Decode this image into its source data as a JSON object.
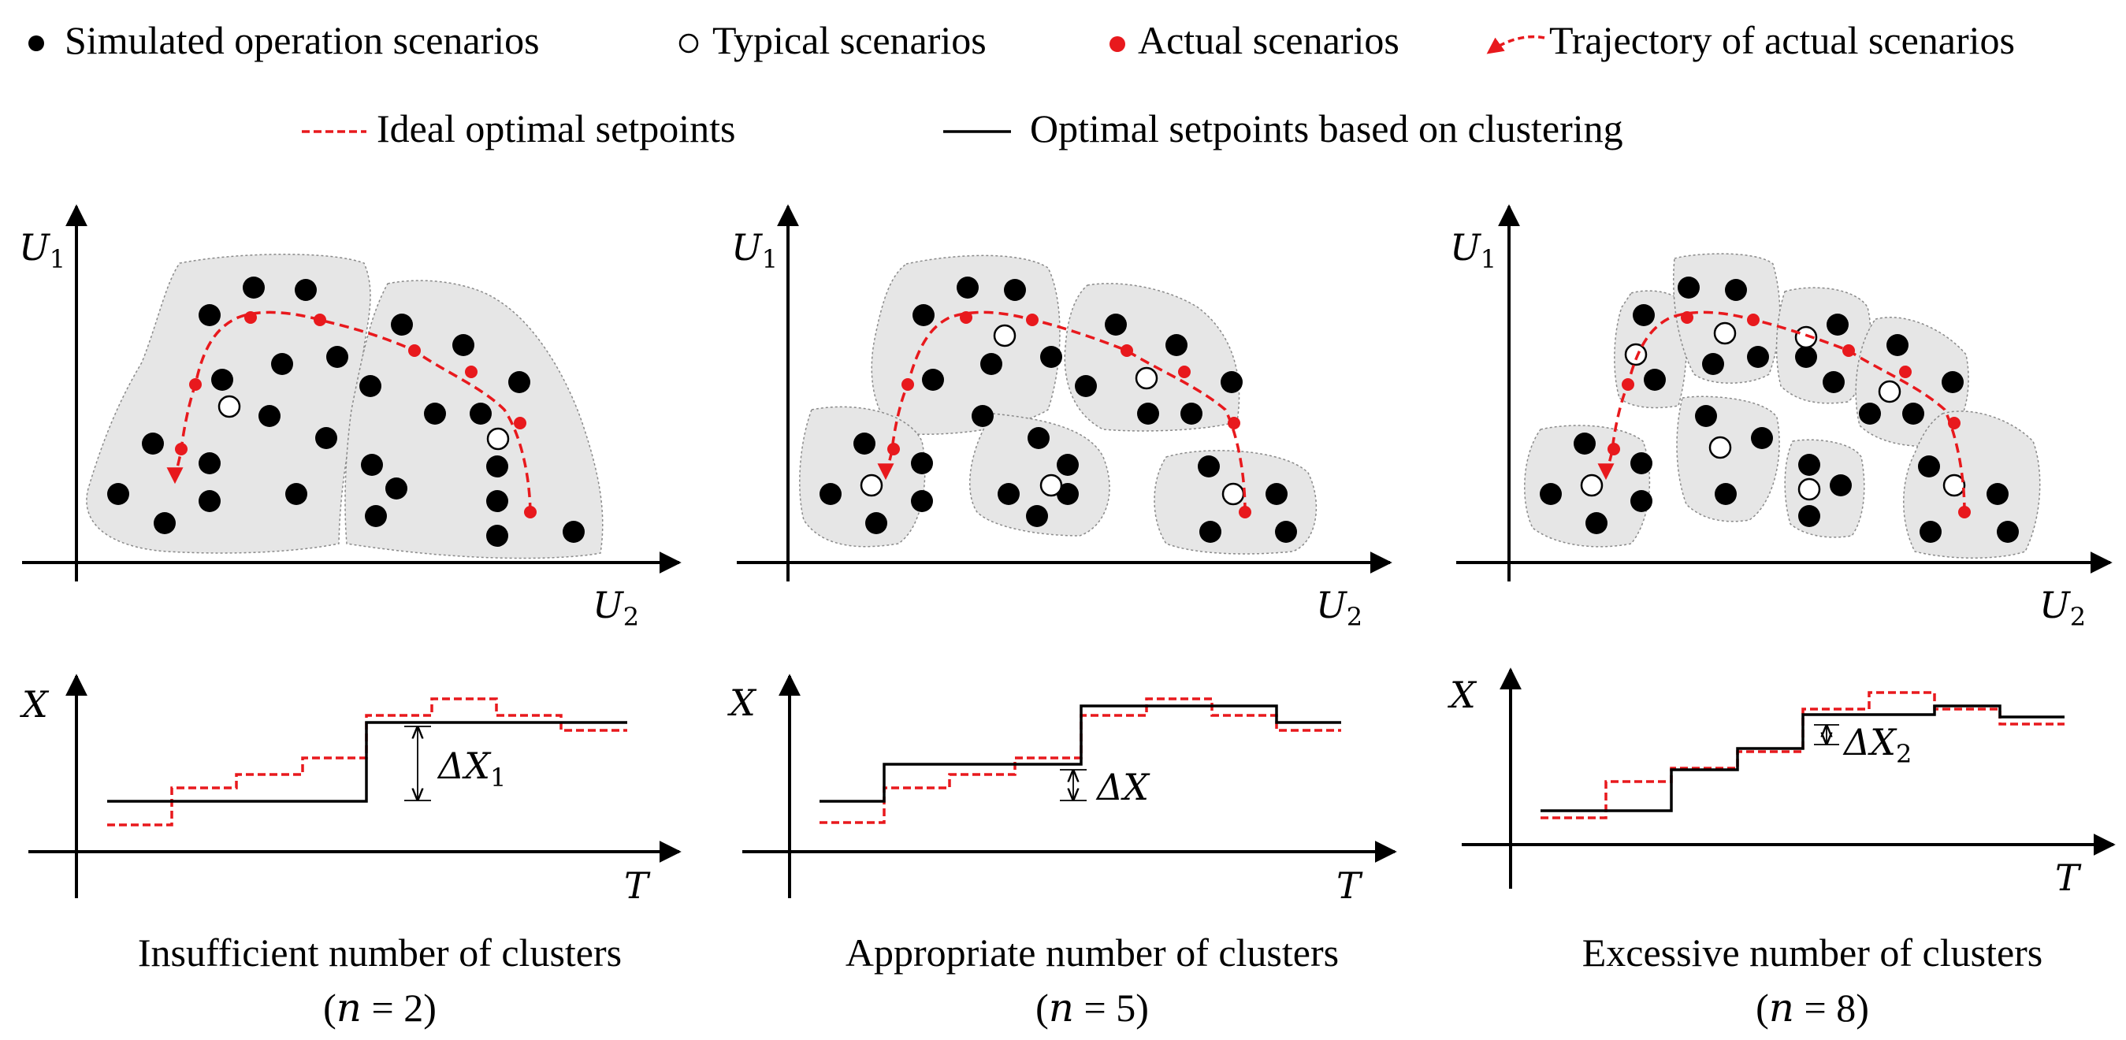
{
  "legend": {
    "simulated": "Simulated operation scenarios",
    "typical": "Typical scenarios",
    "actual": "Actual scenarios",
    "trajectory": "Trajectory of actual scenarios",
    "ideal": "Ideal optimal setpoints",
    "clustering": "Optimal setpoints based on clustering"
  },
  "colors": {
    "actual": "#e8191d",
    "cluster_fill": "#e6e6e6",
    "axis": "#000000"
  },
  "scatter_axes": {
    "y_label": "U",
    "y_sub": "1",
    "x_label": "U",
    "x_sub": "2"
  },
  "step_axes": {
    "y_label": "X",
    "x_label": "T"
  },
  "panels": [
    {
      "id": "insufficient",
      "caption": "Insufficient number of clusters",
      "formula": "(𝑛 = 2)",
      "n_clusters": 2,
      "delta_label": "ΔX",
      "delta_sub": "1"
    },
    {
      "id": "appropriate",
      "caption": "Appropriate number of clusters",
      "formula": "(𝑛 = 5)",
      "n_clusters": 5,
      "delta_label": "ΔX",
      "delta_sub": ""
    },
    {
      "id": "excessive",
      "caption": "Excessive number of clusters",
      "formula": "(𝑛 = 8)",
      "n_clusters": 8,
      "delta_label": "ΔX",
      "delta_sub": "2"
    }
  ]
}
